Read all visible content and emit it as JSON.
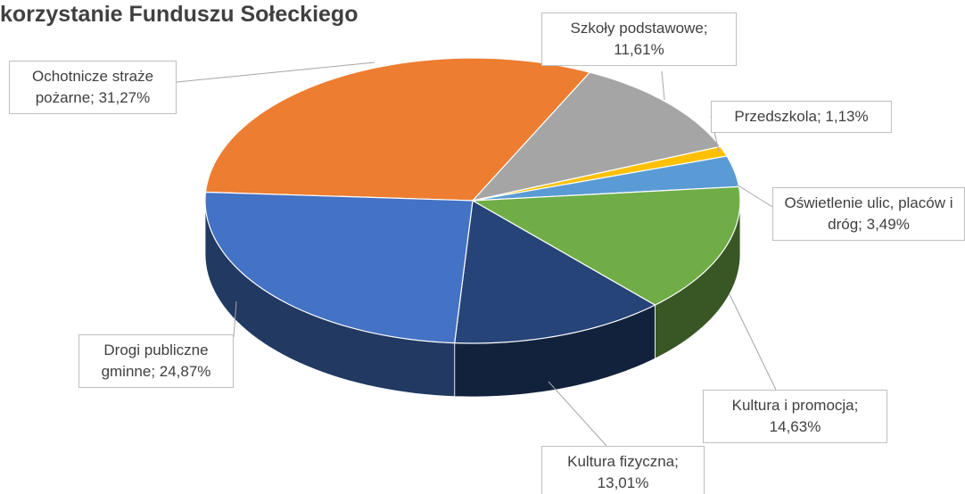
{
  "chart_data": {
    "type": "pie3d",
    "title": "korzystanie Funduszu Sołeckiego",
    "categories": [
      "Ochotnicze straże pożarne",
      "Szkoły podstawowe",
      "Przedszkola",
      "Oświetlenie ulic, placów i dróg",
      "Kultura i promocja",
      "Kultura fizyczna",
      "Drogi publiczne gminne"
    ],
    "values": [
      31.27,
      11.61,
      1.13,
      3.49,
      14.63,
      13.01,
      24.87
    ],
    "value_labels": [
      "Ochotnicze straże pożarne; 31,27%",
      "Szkoły podstawowe; 11,61%",
      "Przedszkola; 1,13%",
      "Oświetlenie ulic, placów i dróg; 3,49%",
      "Kultura i promocja; 14,63%",
      "Kultura fizyczna; 13,01%",
      "Drogi publiczne gminne; 24,87%"
    ],
    "colors": [
      "#ed7d31",
      "#a5a5a5",
      "#ffc000",
      "#5b9bd5",
      "#70ad47",
      "#264478",
      "#4472c4"
    ]
  }
}
